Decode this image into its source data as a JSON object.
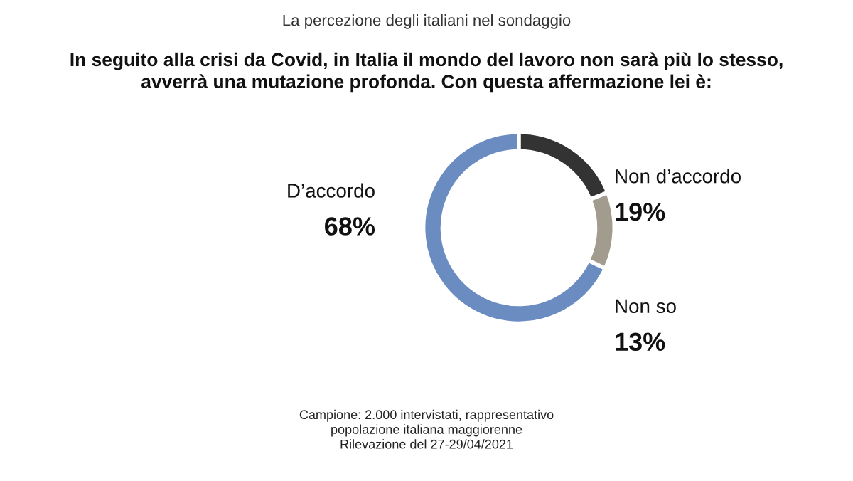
{
  "chart_data": {
    "type": "donut",
    "title": "La percezione degli italiani nel sondaggio",
    "subtitle": "In seguito alla crisi da Covid, in Italia il mondo del lavoro non sarà più lo stesso,\navverrà una mutazione profonda. Con questa affermazione lei è:",
    "categories": [
      "D’accordo",
      "Non d’accordo",
      "Non so"
    ],
    "values": [
      68,
      19,
      13
    ],
    "colors": [
      "#6b8cc0",
      "#333333",
      "#a29c8f"
    ],
    "value_labels": [
      "68%",
      "19%",
      "13%"
    ],
    "annotations": [
      "Campione: 2.000 intervistati, rappresentativo\npopolazione italiana maggiorenne\nRilevazione del 27-29/04/2021"
    ]
  }
}
